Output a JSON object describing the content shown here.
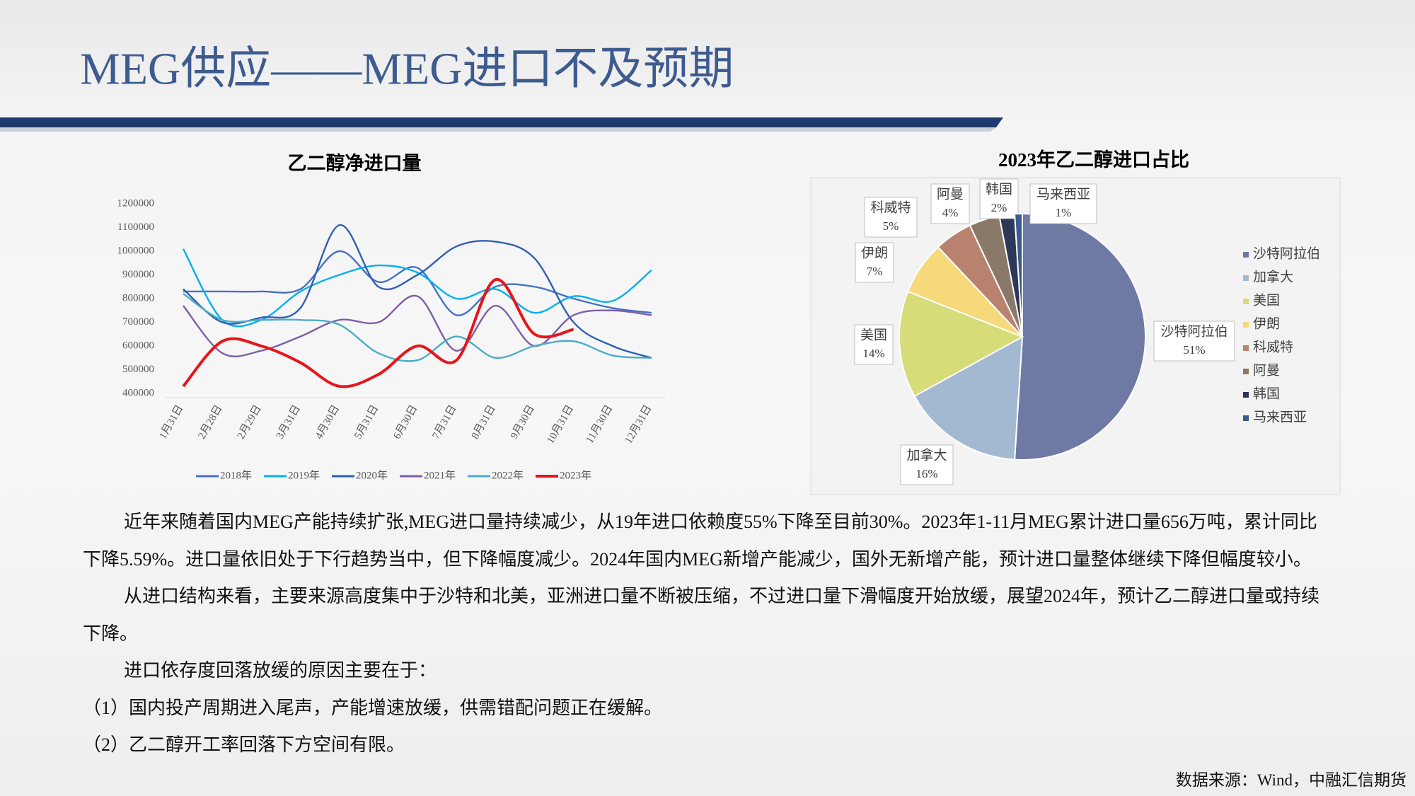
{
  "title": "MEG供应——MEG进口不及预期",
  "chart_data": [
    {
      "type": "line",
      "title": "乙二醇净进口量",
      "categories": [
        "1月31日",
        "2月28日",
        "2月29日",
        "3月31日",
        "4月30日",
        "5月31日",
        "6月30日",
        "7月31日",
        "8月31日",
        "9月30日",
        "10月31日",
        "11月30日",
        "12月31日"
      ],
      "series": [
        {
          "name": "2018年",
          "color": "#4472c4",
          "values": [
            830000,
            830000,
            830000,
            840000,
            1000000,
            870000,
            930000,
            730000,
            850000,
            850000,
            800000,
            760000,
            740000
          ]
        },
        {
          "name": "2019年",
          "color": "#00b0f0",
          "values": [
            1010000,
            710000,
            710000,
            830000,
            900000,
            940000,
            910000,
            800000,
            840000,
            740000,
            810000,
            790000,
            920000
          ]
        },
        {
          "name": "2020年",
          "color": "#2f5fb3",
          "values": [
            840000,
            700000,
            720000,
            760000,
            1110000,
            850000,
            900000,
            1020000,
            1040000,
            970000,
            700000,
            600000,
            550000
          ]
        },
        {
          "name": "2021年",
          "color": "#7f5ea8",
          "values": [
            770000,
            570000,
            580000,
            640000,
            710000,
            700000,
            810000,
            580000,
            770000,
            600000,
            730000,
            750000,
            730000
          ]
        },
        {
          "name": "2022年",
          "color": "#4bacc6",
          "values": [
            820000,
            710000,
            710000,
            710000,
            690000,
            570000,
            540000,
            640000,
            550000,
            600000,
            620000,
            560000,
            550000
          ]
        },
        {
          "name": "2023年",
          "color": "#e8141b",
          "values": [
            430000,
            620000,
            600000,
            530000,
            430000,
            480000,
            600000,
            540000,
            880000,
            650000,
            670000,
            null,
            null
          ]
        }
      ],
      "ylim": [
        400000,
        1200000
      ],
      "yticks": [
        400000,
        500000,
        600000,
        700000,
        800000,
        900000,
        1000000,
        1100000,
        1200000
      ]
    },
    {
      "type": "pie",
      "title": "2023年乙二醇进口占比",
      "categories": [
        "沙特阿拉伯",
        "加拿大",
        "美国",
        "伊朗",
        "科威特",
        "阿曼",
        "韩国",
        "马来西亚"
      ],
      "values": [
        51,
        16,
        14,
        7,
        5,
        4,
        2,
        1
      ],
      "value_labels": [
        "51%",
        "16%",
        "14%",
        "7%",
        "5%",
        "4%",
        "2%",
        "1%"
      ],
      "colors": [
        "#6e7aa3",
        "#a3b9d1",
        "#d6dc78",
        "#f6d97a",
        "#b9826f",
        "#8a7869",
        "#2d3757",
        "#3c5a8e"
      ]
    }
  ],
  "paragraphs": [
    "近年来随着国内MEG产能持续扩张,MEG进口量持续减少，从19年进口依赖度55%下降至目前30%。2023年1-11月MEG累计进口量656万吨，累计同比下降5.59%。进口量依旧处于下行趋势当中，但下降幅度减少。2024年国内MEG新增产能减少，国外无新增产能，预计进口量整体继续下降但幅度较小。",
    "从进口结构来看，主要来源高度集中于沙特和北美，亚洲进口量不断被压缩，不过进口量下滑幅度开始放缓，展望2024年，预计乙二醇进口量或持续下降。",
    "进口依存度回落放缓的原因主要在于：",
    "（1）国内投产周期进入尾声，产能增速放缓，供需错配问题正在缓解。",
    "（2）乙二醇开工率回落下方空间有限。"
  ],
  "source": "数据来源：Wind，中融汇信期货"
}
